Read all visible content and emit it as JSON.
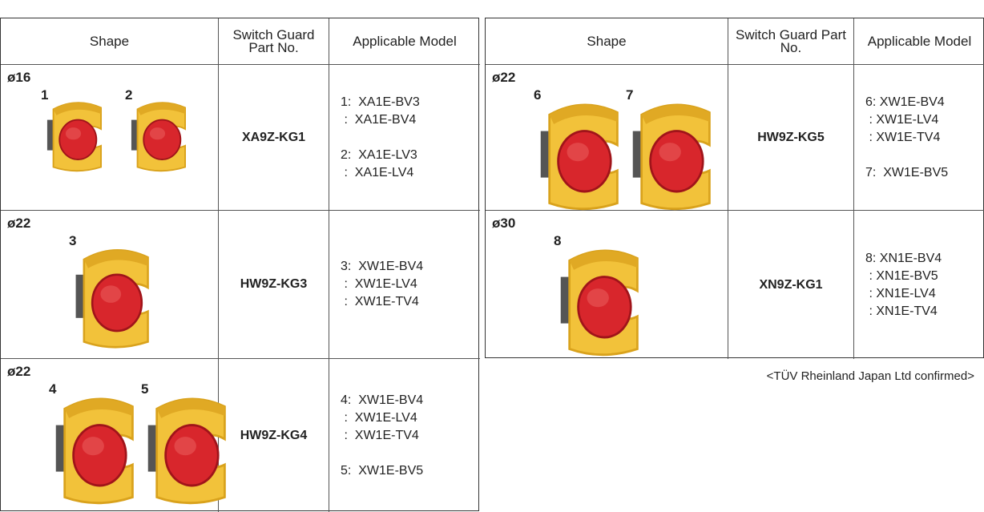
{
  "tables": [
    {
      "headers": [
        "Shape",
        "Switch Guard Part No.",
        "Applicable Model"
      ],
      "rows": [
        {
          "size": "ø16",
          "labels": [
            "1",
            "2"
          ],
          "part": "XA9Z-KG1",
          "models": [
            [
              "1:  XA1E-BV3",
              " :  XA1E-BV4"
            ],
            [
              "2:  XA1E-LV3",
              " :  XA1E-LV4"
            ]
          ]
        },
        {
          "size": "ø22",
          "labels": [
            "3"
          ],
          "part": "HW9Z-KG3",
          "models": [
            [
              "3:  XW1E-BV4",
              " :  XW1E-LV4",
              " :  XW1E-TV4"
            ]
          ]
        },
        {
          "size": "ø22",
          "labels": [
            "4",
            "5"
          ],
          "part": "HW9Z-KG4",
          "models": [
            [
              "4:  XW1E-BV4",
              " :  XW1E-LV4",
              " :  XW1E-TV4"
            ],
            [
              "5:  XW1E-BV5"
            ]
          ]
        }
      ]
    },
    {
      "headers": [
        "Shape",
        "Switch Guard Part No.",
        "Applicable Model"
      ],
      "rows": [
        {
          "size": "ø22",
          "labels": [
            "6",
            "7"
          ],
          "part": "HW9Z-KG5",
          "models": [
            [
              "6: XW1E-BV4",
              " : XW1E-LV4",
              " : XW1E-TV4"
            ],
            [
              "7:  XW1E-BV5"
            ]
          ]
        },
        {
          "size": "ø30",
          "labels": [
            "8"
          ],
          "part": "XN9Z-KG1",
          "models": [
            [
              "8: XN1E-BV4",
              " : XN1E-BV5",
              " : XN1E-LV4",
              " : XN1E-TV4"
            ]
          ]
        }
      ]
    }
  ],
  "note": "<TÜV Rheinland Japan Ltd confirmed>"
}
